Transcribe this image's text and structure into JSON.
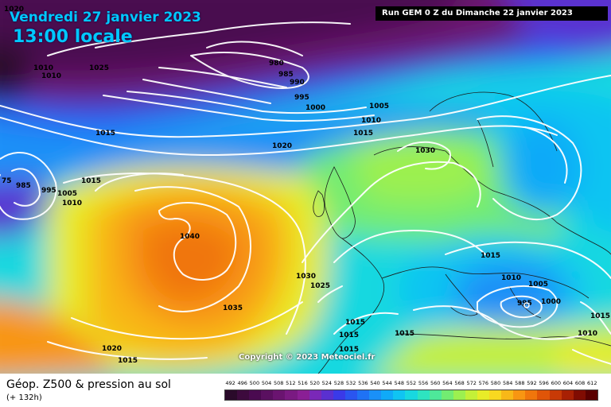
{
  "header": {
    "date": "Vendredi 27 janvier 2023",
    "local_time": "13:00 locale",
    "run_info": "Run GEM 0 Z du Dimanche 22 janvier 2023"
  },
  "copyright": "Copyright © 2023 Meteociel.fr",
  "footer": {
    "title": "Géop. Z500 & pression au sol",
    "lead_time": "(+ 132h)"
  },
  "legend": {
    "values": [
      "492",
      "496",
      "500",
      "504",
      "508",
      "512",
      "516",
      "520",
      "524",
      "528",
      "532",
      "536",
      "540",
      "544",
      "548",
      "552",
      "556",
      "560",
      "564",
      "568",
      "572",
      "576",
      "580",
      "584",
      "588",
      "592",
      "596",
      "600",
      "604",
      "608",
      "612"
    ],
    "colors": [
      "#2a0a2a",
      "#3d0a3d",
      "#4a0a50",
      "#5a1060",
      "#6a1470",
      "#7a1a82",
      "#8a1f95",
      "#7a28b8",
      "#5a30d0",
      "#3a3ae8",
      "#2a55f0",
      "#1f72f5",
      "#1a90f8",
      "#10aaf8",
      "#10c4f2",
      "#18d8e0",
      "#2ee4c0",
      "#4ee89a",
      "#72ec72",
      "#9cf050",
      "#c4f038",
      "#e8ec28",
      "#f8d820",
      "#f8b818",
      "#f89612",
      "#f0760c",
      "#e05508",
      "#c83a06",
      "#a82004",
      "#800c02",
      "#5a0000"
    ]
  },
  "isobar_labels": [
    {
      "id": "l1020a",
      "text": "1020"
    },
    {
      "id": "l1010a",
      "text": "1010"
    },
    {
      "id": "l1010b",
      "text": "1010"
    },
    {
      "id": "l1025",
      "text": "1025"
    },
    {
      "id": "l980",
      "text": "980"
    },
    {
      "id": "l985",
      "text": "985"
    },
    {
      "id": "l990",
      "text": "990"
    },
    {
      "id": "l995",
      "text": "995"
    },
    {
      "id": "l1000a",
      "text": "1000"
    },
    {
      "id": "l1005a",
      "text": "1005"
    },
    {
      "id": "l1010c",
      "text": "1010"
    },
    {
      "id": "l1015a",
      "text": "1015"
    },
    {
      "id": "l1015b",
      "text": "1015"
    },
    {
      "id": "l1020b",
      "text": "1020"
    },
    {
      "id": "l1030a",
      "text": "1030"
    },
    {
      "id": "l1015c",
      "text": "1015"
    },
    {
      "id": "l975",
      "text": "75"
    },
    {
      "id": "l980b",
      "text": "985"
    },
    {
      "id": "l995b",
      "text": "995"
    },
    {
      "id": "l1005b",
      "text": "1005"
    },
    {
      "id": "l1010d",
      "text": "1010"
    },
    {
      "id": "l1040",
      "text": "1040"
    },
    {
      "id": "l1030b",
      "text": "1030"
    },
    {
      "id": "l1025b",
      "text": "1025"
    },
    {
      "id": "l1035",
      "text": "1035"
    },
    {
      "id": "l1020c",
      "text": "1020"
    },
    {
      "id": "l1015d",
      "text": "1015"
    },
    {
      "id": "l1015e",
      "text": "1015"
    },
    {
      "id": "l1015f",
      "text": "1015"
    },
    {
      "id": "l1015g",
      "text": "1015"
    },
    {
      "id": "l1015h",
      "text": "1015"
    },
    {
      "id": "l1015i",
      "text": "1015"
    },
    {
      "id": "l1010e",
      "text": "1010"
    },
    {
      "id": "l1005c",
      "text": "1005"
    },
    {
      "id": "l1000b",
      "text": "1000"
    },
    {
      "id": "l995c",
      "text": "995"
    },
    {
      "id": "l1015j",
      "text": "1015"
    },
    {
      "id": "l1010f",
      "text": "1010"
    }
  ]
}
